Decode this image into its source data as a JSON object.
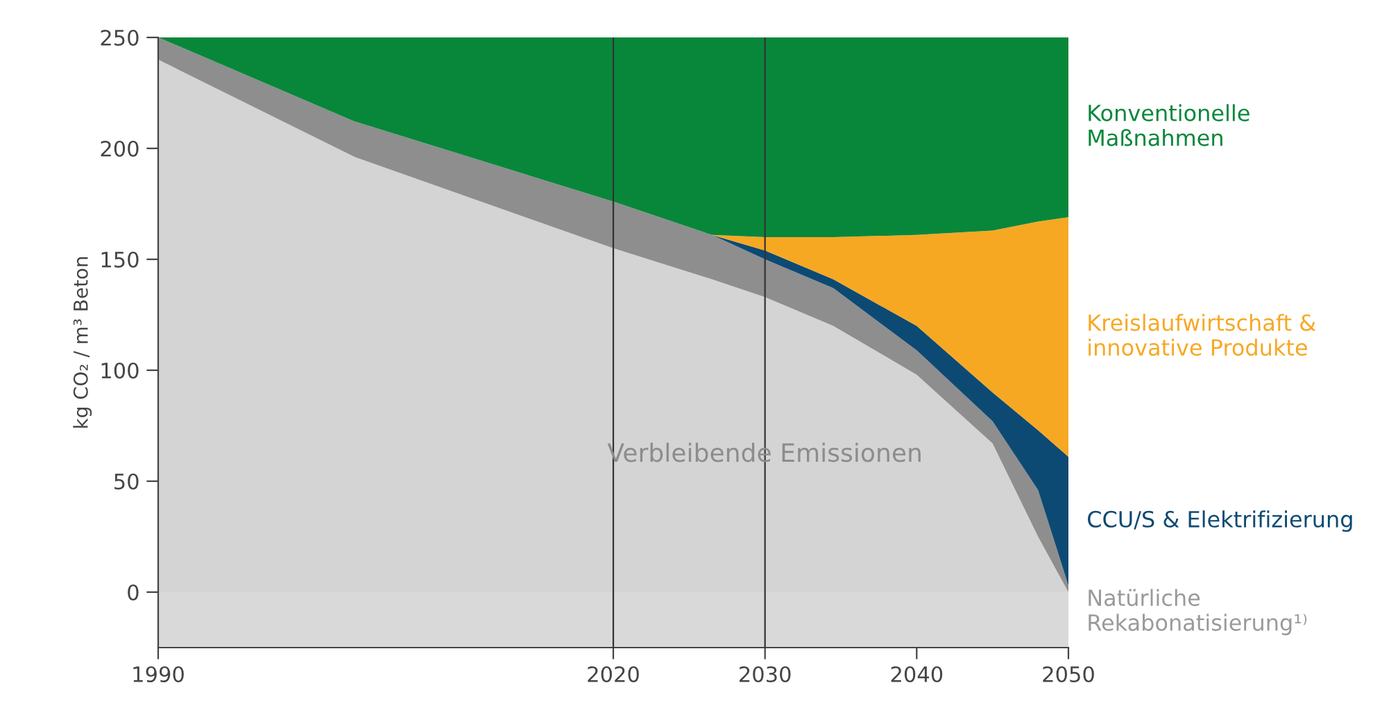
{
  "chart_data": {
    "type": "area",
    "stacked": true,
    "ylabel": "kg CO₂ / m³ Beton",
    "x": [
      1990,
      2003,
      2020,
      2026.5,
      2030,
      2034.5,
      2040,
      2045,
      2048,
      2050
    ],
    "series": [
      {
        "name": "Verbleibende Emissionen",
        "color": "#d4d4d4",
        "values": [
          240,
          196,
          155,
          141,
          133,
          120,
          98,
          67,
          25,
          0
        ]
      },
      {
        "name": "Natürliche Rekabonatisierung¹⁾",
        "color": "#8e8e8e",
        "values": [
          10,
          16,
          21,
          20,
          17,
          17,
          11,
          10,
          21,
          3
        ]
      },
      {
        "name": "CCU/S & Elektrifizierung",
        "color": "#0d4a73",
        "values": [
          0,
          0,
          0,
          0,
          4,
          4,
          11,
          13,
          27,
          58
        ]
      },
      {
        "name": "Kreislaufwirtschaft & innovative Produkte",
        "color": "#f7a823",
        "values": [
          0,
          0,
          0,
          0,
          6,
          19,
          41,
          73,
          94,
          108
        ]
      },
      {
        "name": "Konventionelle Maßnahmen",
        "color": "#08873a",
        "values": [
          0,
          38,
          74,
          89,
          90,
          90,
          89,
          87,
          83,
          81
        ]
      }
    ],
    "xlim": [
      1990,
      2050
    ],
    "xticks": [
      1990,
      2020,
      2030,
      2040,
      2050
    ],
    "ylim": [
      -25,
      250
    ],
    "yticks": [
      0,
      50,
      100,
      150,
      200,
      250
    ],
    "ref_lines": [
      {
        "axis": "x",
        "value": 2020,
        "color": "#333333"
      },
      {
        "axis": "x",
        "value": 2030,
        "color": "#333333"
      }
    ],
    "bands": [
      {
        "axis": "y",
        "from": -25,
        "to": 0,
        "color": "#d9d9d9"
      }
    ],
    "grid": false,
    "legend": false
  }
}
